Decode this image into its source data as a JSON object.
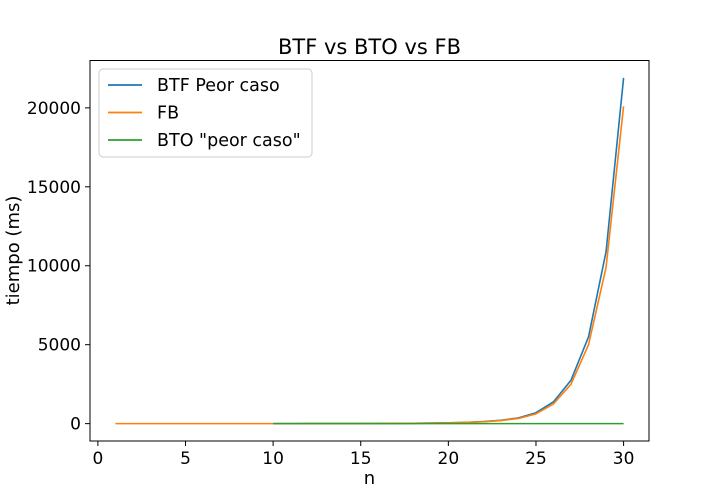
{
  "chart_data": {
    "type": "line",
    "title": "BTF vs BTO vs FB",
    "xlabel": "n",
    "ylabel": "tiempo (ms)",
    "xlim": [
      -0.45,
      31.45
    ],
    "ylim": [
      -1100,
      23000
    ],
    "xticks": [
      0,
      5,
      10,
      15,
      20,
      25,
      30
    ],
    "yticks": [
      0,
      5000,
      10000,
      15000,
      20000
    ],
    "grid": false,
    "legend_position": "top-left",
    "series": [
      {
        "name": "BTF Peor caso",
        "color": "#1f77b4",
        "x": [
          10,
          11,
          12,
          13,
          14,
          15,
          16,
          17,
          18,
          19,
          20,
          21,
          22,
          23,
          24,
          25,
          26,
          27,
          28,
          29,
          30
        ],
        "y": [
          1,
          1,
          2,
          3,
          4,
          6,
          10,
          15,
          22,
          35,
          50,
          80,
          130,
          210,
          360,
          690,
          1380,
          2750,
          5500,
          10900,
          21900
        ]
      },
      {
        "name": "FB",
        "color": "#ff7f0e",
        "x": [
          1,
          2,
          3,
          4,
          5,
          6,
          7,
          8,
          9,
          10,
          11,
          12,
          13,
          14,
          15,
          16,
          17,
          18,
          19,
          20,
          21,
          22,
          23,
          24,
          25,
          26,
          27,
          28,
          29,
          30
        ],
        "y": [
          0,
          0,
          0,
          0,
          0,
          0,
          0,
          0,
          0,
          1,
          1,
          2,
          3,
          4,
          6,
          9,
          14,
          20,
          32,
          48,
          75,
          120,
          195,
          330,
          620,
          1250,
          2500,
          5000,
          9900,
          20100
        ]
      },
      {
        "name": "BTO \"peor caso\"",
        "color": "#2ca02c",
        "x": [
          10,
          11,
          12,
          13,
          14,
          15,
          16,
          17,
          18,
          19,
          20,
          21,
          22,
          23,
          24,
          25,
          26,
          27,
          28,
          29,
          30
        ],
        "y": [
          0,
          0,
          0,
          0,
          0,
          0,
          0,
          0,
          0,
          0,
          0,
          0,
          0,
          0,
          0,
          0,
          0,
          0,
          0,
          0,
          0
        ]
      }
    ]
  }
}
